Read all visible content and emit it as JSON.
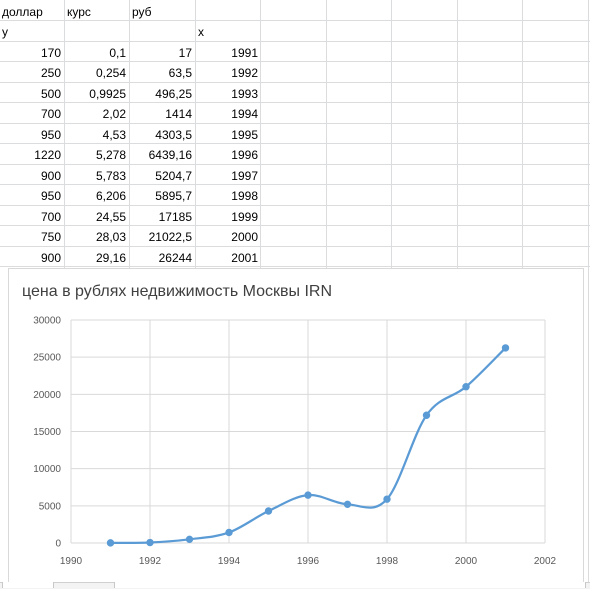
{
  "sheet": {
    "headers": {
      "col_a": "доллар",
      "col_b": "курс",
      "col_c": "руб",
      "y_label": "y",
      "x_label": "x"
    },
    "rows": [
      {
        "dollar": "170",
        "rate": "0,1",
        "rub": "17",
        "year": "1991"
      },
      {
        "dollar": "250",
        "rate": "0,254",
        "rub": "63,5",
        "year": "1992"
      },
      {
        "dollar": "500",
        "rate": "0,9925",
        "rub": "496,25",
        "year": "1993"
      },
      {
        "dollar": "700",
        "rate": "2,02",
        "rub": "1414",
        "year": "1994"
      },
      {
        "dollar": "950",
        "rate": "4,53",
        "rub": "4303,5",
        "year": "1995"
      },
      {
        "dollar": "1220",
        "rate": "5,278",
        "rub": "6439,16",
        "year": "1996"
      },
      {
        "dollar": "900",
        "rate": "5,783",
        "rub": "5204,7",
        "year": "1997"
      },
      {
        "dollar": "950",
        "rate": "6,206",
        "rub": "5895,7",
        "year": "1998"
      },
      {
        "dollar": "700",
        "rate": "24,55",
        "rub": "17185",
        "year": "1999"
      },
      {
        "dollar": "750",
        "rate": "28,03",
        "rub": "21022,5",
        "year": "2000"
      },
      {
        "dollar": "900",
        "rate": "29,16",
        "rub": "26244",
        "year": "2001"
      }
    ]
  },
  "colors": {
    "series": "#5b9bd5",
    "gridline": "#d9d9d9",
    "cell_grid": "#dadcdd",
    "axis_text": "#595959"
  },
  "chart_data": {
    "type": "scatter",
    "title": "цена в рублях недвижимость Москвы IRN",
    "xlabel": "",
    "ylabel": "",
    "xlim": [
      1990,
      2002
    ],
    "ylim": [
      0,
      30000
    ],
    "x_ticks": [
      1990,
      1992,
      1994,
      1996,
      1998,
      2000,
      2002
    ],
    "y_ticks": [
      0,
      5000,
      10000,
      15000,
      20000,
      25000,
      30000
    ],
    "grid": "horizontal",
    "smoothed_line": true,
    "series": [
      {
        "x": [
          1991,
          1992,
          1993,
          1994,
          1995,
          1996,
          1997,
          1998,
          1999,
          2000,
          2001
        ],
        "y": [
          17,
          63.5,
          496.25,
          1414,
          4303.5,
          6439.16,
          5204.7,
          5895.7,
          17185,
          21022.5,
          26244
        ]
      }
    ]
  }
}
